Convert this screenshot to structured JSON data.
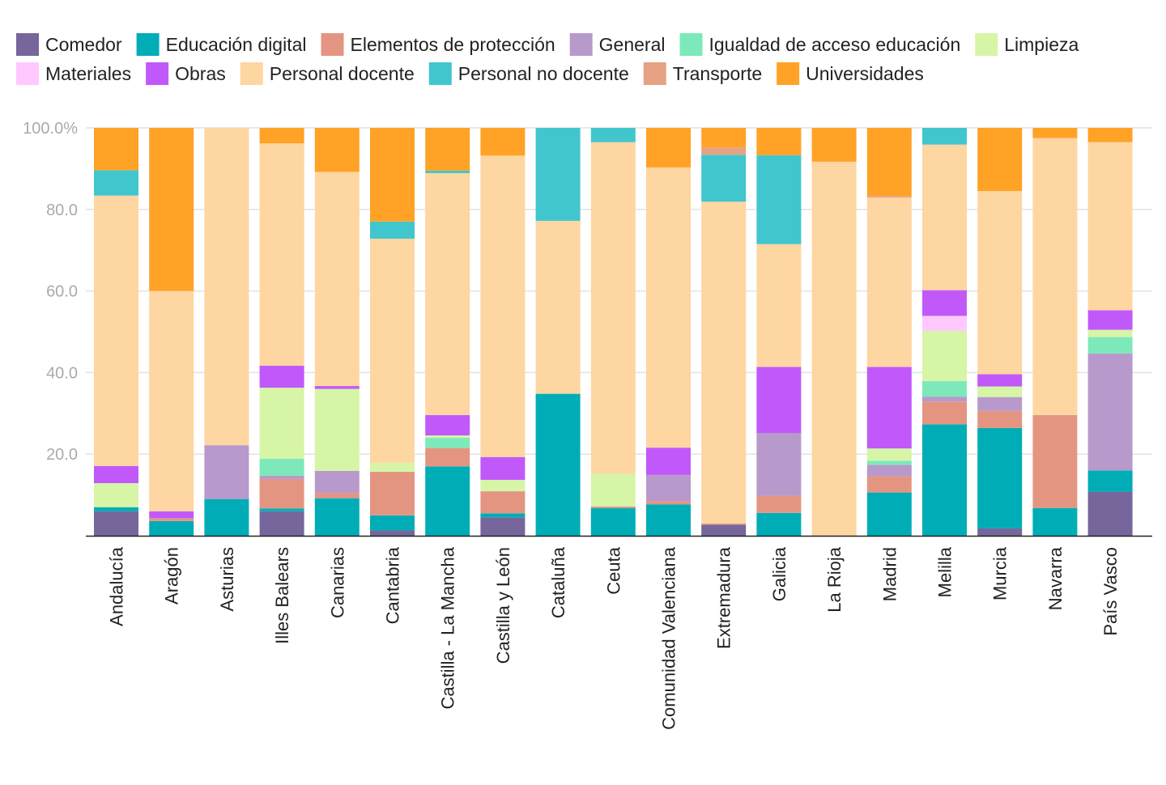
{
  "chart_data": {
    "type": "bar",
    "stacked": true,
    "normalized": true,
    "legend_position": "top",
    "grid": true,
    "ylim": [
      0,
      100
    ],
    "yticks": [
      "20.0",
      "40.0",
      "60.0",
      "80.0",
      "100.0%"
    ],
    "categories": [
      "Andalucía",
      "Aragón",
      "Asturias",
      "Illes Balears",
      "Canarias",
      "Cantabria",
      "Castilla - La Mancha",
      "Castilla y León",
      "Cataluña",
      "Ceuta",
      "Comunidad Valenciana",
      "Extremadura",
      "Galicia",
      "La Rioja",
      "Madrid",
      "Melilla",
      "Murcia",
      "Navarra",
      "País Vasco"
    ],
    "series": [
      {
        "name": "Comedor",
        "color": "#76669b",
        "values": [
          6,
          0,
          0,
          6,
          0,
          1.3,
          0,
          4.5,
          0,
          0,
          0,
          2.7,
          0,
          0,
          0,
          0,
          1.8,
          0,
          10.8
        ]
      },
      {
        "name": "Educación digital",
        "color": "#00adb6",
        "values": [
          1,
          3.6,
          9,
          0.7,
          9.2,
          3.7,
          17,
          1,
          34.8,
          6.8,
          7.7,
          0,
          5.6,
          0,
          10.6,
          27.3,
          24.6,
          6.8,
          5.2
        ]
      },
      {
        "name": "Elementos de protección",
        "color": "#e49582",
        "values": [
          0,
          0.7,
          0,
          7.2,
          1.3,
          10.7,
          4.5,
          5.4,
          0,
          0.4,
          0.8,
          0.3,
          4.2,
          0,
          4,
          5.6,
          4.2,
          22.8,
          0
        ]
      },
      {
        "name": "General",
        "color": "#b899cb",
        "values": [
          0,
          0,
          13.2,
          0.8,
          5.4,
          0,
          0,
          0,
          0,
          0,
          6.4,
          0,
          15.4,
          0,
          2.8,
          1.2,
          3.4,
          0,
          28.7
        ]
      },
      {
        "name": "Igualdad de acceso educación",
        "color": "#7de9bb",
        "values": [
          0,
          0,
          0,
          4.2,
          0,
          0,
          2.5,
          0,
          0,
          0,
          0,
          0,
          0,
          0,
          1,
          3.8,
          0,
          0,
          4
        ]
      },
      {
        "name": "Limpieza",
        "color": "#d6f5a6",
        "values": [
          5.9,
          0,
          0,
          17.4,
          20.1,
          2.2,
          0.6,
          2.8,
          0,
          8,
          0,
          0,
          0,
          0,
          3,
          12.3,
          2.6,
          0,
          1.8
        ]
      },
      {
        "name": "Materiales",
        "color": "#ffc8ff",
        "values": [
          0,
          0,
          0,
          0,
          0,
          0,
          0,
          0,
          0,
          0,
          0,
          0,
          0,
          0,
          0,
          3.7,
          0,
          0,
          0
        ]
      },
      {
        "name": "Obras",
        "color": "#c159fa",
        "values": [
          4.2,
          1.7,
          0,
          5.4,
          0.7,
          0,
          5,
          5.6,
          0,
          0,
          6.7,
          0,
          16.2,
          0,
          20,
          6.3,
          3,
          0,
          4.8
        ]
      },
      {
        "name": "Personal docente",
        "color": "#fed6a1",
        "values": [
          66.3,
          54,
          77.8,
          54.5,
          52.5,
          55,
          59.3,
          73.9,
          42.4,
          81.3,
          68.7,
          78.9,
          30.1,
          91.7,
          41.5,
          35.7,
          44.9,
          67.9,
          41.2
        ]
      },
      {
        "name": "Personal no docente",
        "color": "#41c6ce",
        "values": [
          6.2,
          0,
          0,
          0,
          0,
          4.2,
          0.6,
          0,
          22.8,
          3.5,
          0,
          11.5,
          21.8,
          0,
          0,
          4.1,
          0,
          0,
          0
        ]
      },
      {
        "name": "Transporte",
        "color": "#e6a282",
        "values": [
          0,
          0,
          0,
          0,
          0,
          0,
          0,
          0,
          0,
          0,
          0,
          1.8,
          0,
          0,
          0.4,
          0,
          0,
          0,
          0
        ]
      },
      {
        "name": "Universidades",
        "color": "#ffa226",
        "values": [
          10.4,
          40,
          0,
          3.8,
          10.8,
          23,
          10.5,
          6.8,
          0,
          0,
          9.7,
          4.8,
          6.7,
          8.3,
          16.7,
          0,
          15.5,
          2.5,
          3.5
        ]
      }
    ]
  }
}
